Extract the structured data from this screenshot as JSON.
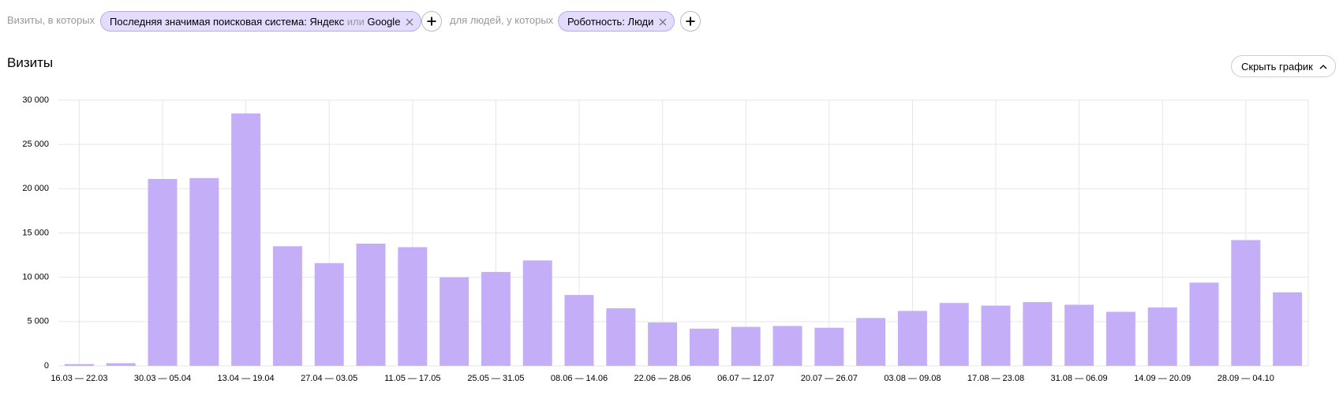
{
  "filters": {
    "prefix": "Визиты, в которых",
    "chip1": {
      "text": "Последняя значимая поисковая система: Яндекс",
      "conj": "или",
      "tail": "Google"
    },
    "middle": "для людей, у которых",
    "chip2": "Роботность: Люди"
  },
  "hide_button": "Скрыть график",
  "chart_data": {
    "type": "bar",
    "title": "Визиты",
    "color": "#c4aef8",
    "categories": [
      "16.03 — 22.03",
      null,
      "30.03 — 05.04",
      null,
      "13.04 — 19.04",
      null,
      "27.04 — 03.05",
      null,
      "11.05 — 17.05",
      null,
      "25.05 — 31.05",
      null,
      "08.06 — 14.06",
      null,
      "22.06 — 28.06",
      null,
      "06.07 — 12.07",
      null,
      "20.07 — 26.07",
      null,
      "03.08 — 09.08",
      null,
      "17.08 — 23.08",
      null,
      "31.08 — 06.09",
      null,
      "14.09 — 20.09",
      null,
      "28.09 — 04.10",
      null
    ],
    "values": [
      200,
      300,
      21100,
      21200,
      28500,
      13500,
      11600,
      13800,
      13400,
      10000,
      10600,
      11900,
      8000,
      6500,
      4900,
      4200,
      4400,
      4500,
      4300,
      5400,
      6200,
      7100,
      6800,
      7200,
      6900,
      6100,
      6600,
      9400,
      14200,
      8300
    ],
    "ylim": [
      0,
      30000
    ],
    "yticks": [
      0,
      {
        "value": 5000,
        "label": "5 000"
      },
      {
        "value": 10000,
        "label": "10 000"
      },
      {
        "value": 15000,
        "label": "15 000"
      },
      {
        "value": 20000,
        "label": "20 000"
      },
      {
        "value": 25000,
        "label": "25 000"
      },
      {
        "value": 30000,
        "label": "30 000"
      }
    ],
    "grid": true
  }
}
